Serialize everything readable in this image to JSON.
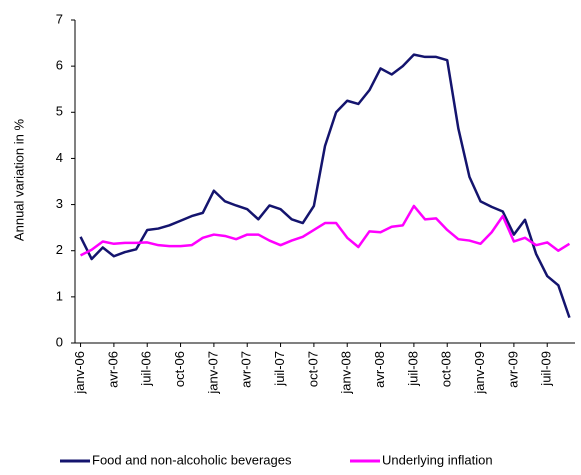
{
  "chart_data": {
    "type": "line",
    "y_label": "Annual variation in %",
    "categories": [
      "janv-06",
      null,
      null,
      "avr-06",
      null,
      null,
      "juil-06",
      null,
      null,
      "oct-06",
      null,
      null,
      "janv-07",
      null,
      null,
      "avr-07",
      null,
      null,
      "juil-07",
      null,
      null,
      "oct-07",
      null,
      null,
      "janv-08",
      null,
      null,
      "avr-08",
      null,
      null,
      "juil-08",
      null,
      null,
      "oct-08",
      null,
      null,
      "janv-09",
      null,
      null,
      "avr-09",
      null,
      null,
      "juil-09",
      null,
      null
    ],
    "series": [
      {
        "name": "Food and non-alcoholic beverages",
        "color": "#14146e",
        "values": [
          2.3,
          1.82,
          2.07,
          1.88,
          1.97,
          2.03,
          2.45,
          2.48,
          2.55,
          2.65,
          2.75,
          2.82,
          3.3,
          3.07,
          2.98,
          2.9,
          2.68,
          2.98,
          2.9,
          2.68,
          2.6,
          2.97,
          4.27,
          5.0,
          5.25,
          5.18,
          5.48,
          5.95,
          5.82,
          6.0,
          6.25,
          6.2,
          6.2,
          6.13,
          4.65,
          3.6,
          3.07,
          2.95,
          2.85,
          2.35,
          2.67,
          1.93,
          1.45,
          1.25,
          0.55
        ]
      },
      {
        "name": "Underlying inflation",
        "color": "#ff00ff",
        "values": [
          1.9,
          2.02,
          2.2,
          2.15,
          2.17,
          2.17,
          2.18,
          2.12,
          2.1,
          2.1,
          2.12,
          2.28,
          2.35,
          2.32,
          2.25,
          2.35,
          2.35,
          2.22,
          2.12,
          2.22,
          2.3,
          2.45,
          2.6,
          2.6,
          2.28,
          2.08,
          2.42,
          2.4,
          2.52,
          2.55,
          2.97,
          2.68,
          2.7,
          2.45,
          2.25,
          2.22,
          2.15,
          2.4,
          2.75,
          2.2,
          2.28,
          2.12,
          2.18,
          2.0,
          2.15
        ]
      }
    ],
    "ylim": [
      0,
      7
    ],
    "yticks": [
      0,
      1,
      2,
      3,
      4,
      5,
      6,
      7
    ],
    "grid": false
  }
}
